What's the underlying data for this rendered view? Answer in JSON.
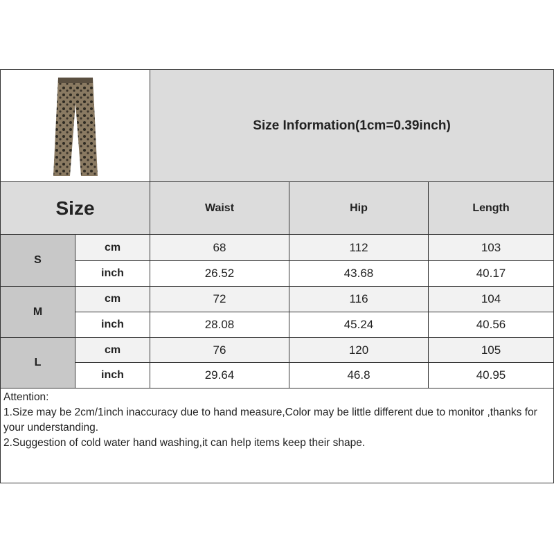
{
  "title": "Size Information(1cm=0.39inch)",
  "size_label": "Size",
  "columns": [
    "Waist",
    "Hip",
    "Length"
  ],
  "rows": [
    {
      "size": "S",
      "cm_label": "cm",
      "inch_label": "inch",
      "cm": [
        "68",
        "112",
        "103"
      ],
      "inch": [
        "26.52",
        "43.68",
        "40.17"
      ]
    },
    {
      "size": "M",
      "cm_label": "cm",
      "inch_label": "inch",
      "cm": [
        "72",
        "116",
        "104"
      ],
      "inch": [
        "28.08",
        "45.24",
        "40.56"
      ]
    },
    {
      "size": "L",
      "cm_label": "cm",
      "inch_label": "inch",
      "cm": [
        "76",
        "120",
        "105"
      ],
      "inch": [
        "29.64",
        "46.8",
        "40.95"
      ]
    }
  ],
  "notes": [
    "Attention:",
    "1.Size may be 2cm/1inch inaccuracy due to hand measure,Color may be little different due to monitor ,thanks for your understanding.",
    "2.Suggestion of cold water hand washing,it can help items keep their shape."
  ],
  "colors": {
    "header": "#dcdcdc",
    "size_column": "#c8c8c8",
    "cm_row": "#f2f2f2"
  }
}
